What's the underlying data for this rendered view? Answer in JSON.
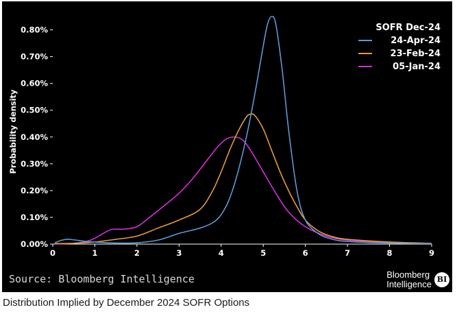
{
  "caption": "Distribution Implied by December 2024 SOFR Options",
  "source": "Source: Bloomberg Intelligence",
  "brand": {
    "line1": "Bloomberg",
    "line2": "Intelligence",
    "badge": "BI"
  },
  "colors": {
    "background": "#000000",
    "text": "#ffffff"
  },
  "chart_data": {
    "type": "line",
    "title": "",
    "xlabel": "",
    "ylabel": "Probability density",
    "xlim": [
      0,
      9
    ],
    "ylim": [
      0,
      0.85
    ],
    "x_ticks": [
      "0",
      "1",
      "2",
      "3",
      "4",
      "5",
      "6",
      "7",
      "8",
      "9"
    ],
    "y_ticks": [
      "0.00%",
      "0.10%",
      "0.20%",
      "0.30%",
      "0.40%",
      "0.50%",
      "0.60%",
      "0.70%",
      "0.80%"
    ],
    "grid": false,
    "legend": {
      "title": "SOFR Dec-24",
      "position": "top-right"
    },
    "series": [
      {
        "name": "24-Apr-24",
        "color": "#5b9bd5",
        "points": [
          [
            0.05,
            0.005
          ],
          [
            0.2,
            0.014
          ],
          [
            0.35,
            0.018
          ],
          [
            0.5,
            0.016
          ],
          [
            0.8,
            0.01
          ],
          [
            1.2,
            0.006
          ],
          [
            1.5,
            0.004
          ],
          [
            2.0,
            0.005
          ],
          [
            2.5,
            0.015
          ],
          [
            3.0,
            0.04
          ],
          [
            3.5,
            0.06
          ],
          [
            3.8,
            0.08
          ],
          [
            4.0,
            0.11
          ],
          [
            4.2,
            0.17
          ],
          [
            4.4,
            0.27
          ],
          [
            4.6,
            0.4
          ],
          [
            4.8,
            0.56
          ],
          [
            5.0,
            0.74
          ],
          [
            5.1,
            0.82
          ],
          [
            5.2,
            0.85
          ],
          [
            5.3,
            0.82
          ],
          [
            5.45,
            0.65
          ],
          [
            5.6,
            0.43
          ],
          [
            5.8,
            0.2
          ],
          [
            6.0,
            0.09
          ],
          [
            6.3,
            0.04
          ],
          [
            6.6,
            0.02
          ],
          [
            7.0,
            0.01
          ],
          [
            8.0,
            0.004
          ],
          [
            9.0,
            0.002
          ]
        ]
      },
      {
        "name": "23-Feb-24",
        "color": "#e89a3c",
        "points": [
          [
            0.05,
            0.002
          ],
          [
            0.5,
            0.003
          ],
          [
            1.0,
            0.008
          ],
          [
            1.5,
            0.018
          ],
          [
            2.0,
            0.03
          ],
          [
            2.5,
            0.06
          ],
          [
            3.0,
            0.09
          ],
          [
            3.5,
            0.13
          ],
          [
            3.8,
            0.2
          ],
          [
            4.0,
            0.27
          ],
          [
            4.2,
            0.35
          ],
          [
            4.4,
            0.42
          ],
          [
            4.6,
            0.475
          ],
          [
            4.7,
            0.485
          ],
          [
            4.8,
            0.48
          ],
          [
            5.0,
            0.43
          ],
          [
            5.2,
            0.35
          ],
          [
            5.4,
            0.27
          ],
          [
            5.6,
            0.2
          ],
          [
            5.8,
            0.14
          ],
          [
            6.0,
            0.09
          ],
          [
            6.3,
            0.05
          ],
          [
            6.6,
            0.03
          ],
          [
            7.0,
            0.018
          ],
          [
            8.0,
            0.008
          ],
          [
            9.0,
            0.003
          ]
        ]
      },
      {
        "name": "05-Jan-24",
        "color": "#d42fd6",
        "points": [
          [
            0.05,
            0.001
          ],
          [
            0.5,
            0.003
          ],
          [
            0.9,
            0.015
          ],
          [
            1.2,
            0.04
          ],
          [
            1.4,
            0.055
          ],
          [
            1.7,
            0.056
          ],
          [
            2.0,
            0.065
          ],
          [
            2.3,
            0.1
          ],
          [
            2.7,
            0.15
          ],
          [
            3.0,
            0.19
          ],
          [
            3.3,
            0.24
          ],
          [
            3.6,
            0.3
          ],
          [
            3.9,
            0.36
          ],
          [
            4.1,
            0.39
          ],
          [
            4.3,
            0.4
          ],
          [
            4.5,
            0.39
          ],
          [
            4.7,
            0.35
          ],
          [
            5.0,
            0.27
          ],
          [
            5.3,
            0.19
          ],
          [
            5.6,
            0.12
          ],
          [
            6.0,
            0.065
          ],
          [
            6.5,
            0.03
          ],
          [
            7.0,
            0.015
          ],
          [
            8.0,
            0.005
          ],
          [
            9.0,
            0.002
          ]
        ]
      }
    ]
  }
}
